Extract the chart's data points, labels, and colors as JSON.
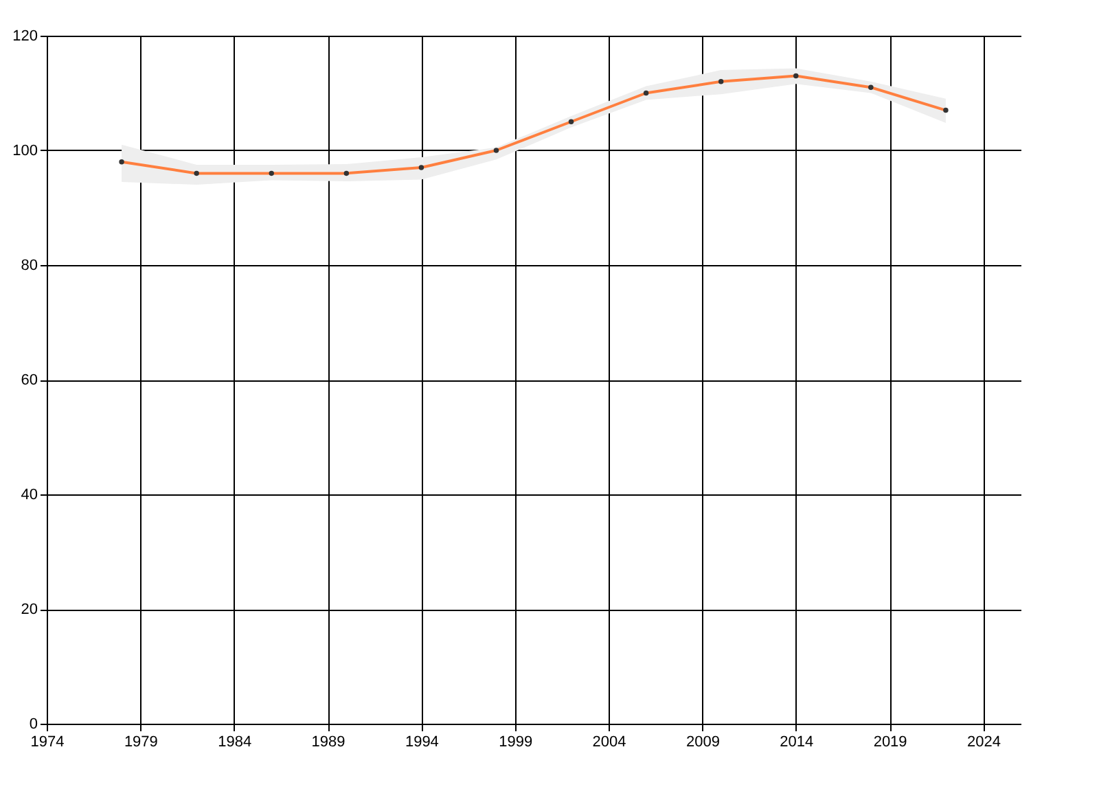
{
  "chart_data": {
    "type": "line",
    "x": [
      1978,
      1982,
      1986,
      1990,
      1994,
      1998,
      2002,
      2006,
      2010,
      2014,
      2018,
      2022
    ],
    "series": [
      {
        "color": "#ff7f3f",
        "values": [
          98,
          96,
          96,
          96,
          97,
          100,
          105,
          110,
          112,
          113,
          111,
          107
        ],
        "lower": [
          94.5,
          94,
          94.8,
          94.6,
          94.9,
          98.4,
          104,
          108.8,
          109.8,
          111.6,
          110,
          104.8
        ],
        "upper": [
          101,
          97.5,
          97.5,
          97.6,
          98.8,
          100.5,
          106,
          111.2,
          114,
          114.3,
          112,
          109
        ]
      }
    ],
    "xlim": [
      1974,
      2026
    ],
    "xticks": [
      1974,
      1979,
      1984,
      1989,
      1994,
      1999,
      2004,
      2009,
      2014,
      2019,
      2024
    ],
    "ylim": [
      0,
      120
    ],
    "yticks": [
      0,
      20,
      40,
      60,
      80,
      100,
      120
    ],
    "grid": true,
    "marker": "circle",
    "line_style": "solid"
  }
}
